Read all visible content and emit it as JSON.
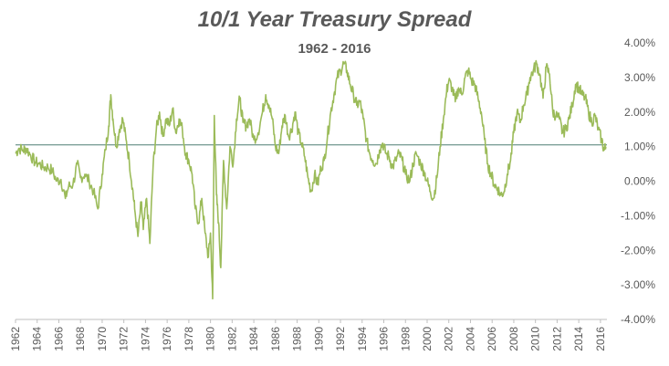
{
  "chart_data": {
    "type": "line",
    "title": "10/1 Year Treasury Spread",
    "subtitle": "1962 - 2016",
    "xlabel": "",
    "ylabel": "",
    "xlim": [
      1962,
      2016.6
    ],
    "ylim": [
      -4,
      4
    ],
    "y_ticks": [
      4,
      3,
      2,
      1,
      0,
      -1,
      -2,
      -3,
      -4
    ],
    "y_tick_labels": [
      "4.00%",
      "3.00%",
      "2.00%",
      "1.00%",
      "0.00%",
      "-1.00%",
      "-2.00%",
      "-3.00%",
      "-4.00%"
    ],
    "x_tick_labels": [
      "1962",
      "1964",
      "1966",
      "1968",
      "1970",
      "1972",
      "1974",
      "1976",
      "1978",
      "1980",
      "1982",
      "1984",
      "1986",
      "1988",
      "1990",
      "1992",
      "1994",
      "1996",
      "1998",
      "2000",
      "2002",
      "2004",
      "2006",
      "2008",
      "2010",
      "2012",
      "2014",
      "2016"
    ],
    "reference_line": {
      "y": 1.05,
      "color": "#4e7f74"
    },
    "grid": false,
    "legend": "none",
    "series": [
      {
        "color": "#9bbb59",
        "points": [
          [
            1962.0,
            0.8
          ],
          [
            1962.3,
            0.95
          ],
          [
            1962.7,
            0.9
          ],
          [
            1963.0,
            0.95
          ],
          [
            1963.4,
            0.75
          ],
          [
            1963.8,
            0.55
          ],
          [
            1964.2,
            0.5
          ],
          [
            1964.6,
            0.4
          ],
          [
            1965.0,
            0.4
          ],
          [
            1965.4,
            0.3
          ],
          [
            1965.8,
            0.0
          ],
          [
            1966.2,
            0.05
          ],
          [
            1966.6,
            -0.5
          ],
          [
            1966.9,
            -0.15
          ],
          [
            1967.3,
            -0.1
          ],
          [
            1967.7,
            0.5
          ],
          [
            1968.0,
            0.1
          ],
          [
            1968.4,
            0.2
          ],
          [
            1968.8,
            0.0
          ],
          [
            1969.2,
            -0.3
          ],
          [
            1969.6,
            -0.8
          ],
          [
            1970.0,
            0.2
          ],
          [
            1970.3,
            0.9
          ],
          [
            1970.6,
            1.6
          ],
          [
            1970.8,
            2.5
          ],
          [
            1971.0,
            1.8
          ],
          [
            1971.3,
            1.0
          ],
          [
            1971.6,
            1.5
          ],
          [
            1971.9,
            1.8
          ],
          [
            1972.2,
            1.2
          ],
          [
            1972.5,
            0.6
          ],
          [
            1972.8,
            -0.2
          ],
          [
            1973.0,
            -0.8
          ],
          [
            1973.3,
            -1.6
          ],
          [
            1973.6,
            -0.6
          ],
          [
            1973.8,
            -1.4
          ],
          [
            1974.1,
            -0.5
          ],
          [
            1974.4,
            -1.8
          ],
          [
            1974.7,
            0.4
          ],
          [
            1975.0,
            1.5
          ],
          [
            1975.3,
            2.0
          ],
          [
            1975.6,
            1.3
          ],
          [
            1975.9,
            1.8
          ],
          [
            1976.2,
            1.6
          ],
          [
            1976.5,
            2.1
          ],
          [
            1976.8,
            1.4
          ],
          [
            1977.1,
            1.8
          ],
          [
            1977.4,
            1.5
          ],
          [
            1977.7,
            0.8
          ],
          [
            1978.0,
            0.6
          ],
          [
            1978.3,
            0.2
          ],
          [
            1978.6,
            -0.8
          ],
          [
            1978.9,
            -1.2
          ],
          [
            1979.2,
            -0.5
          ],
          [
            1979.5,
            -1.5
          ],
          [
            1979.8,
            -2.2
          ],
          [
            1980.0,
            -1.5
          ],
          [
            1980.2,
            -3.4
          ],
          [
            1980.35,
            1.9
          ],
          [
            1980.55,
            -0.4
          ],
          [
            1980.75,
            -1.2
          ],
          [
            1980.95,
            -2.5
          ],
          [
            1981.2,
            0.6
          ],
          [
            1981.5,
            -0.8
          ],
          [
            1981.8,
            1.0
          ],
          [
            1982.1,
            0.5
          ],
          [
            1982.4,
            1.8
          ],
          [
            1982.7,
            2.4
          ],
          [
            1983.0,
            1.7
          ],
          [
            1983.3,
            1.6
          ],
          [
            1983.6,
            1.8
          ],
          [
            1984.0,
            1.2
          ],
          [
            1984.4,
            1.4
          ],
          [
            1984.8,
            2.0
          ],
          [
            1985.1,
            2.5
          ],
          [
            1985.4,
            2.2
          ],
          [
            1985.7,
            1.8
          ],
          [
            1986.0,
            1.0
          ],
          [
            1986.3,
            0.8
          ],
          [
            1986.6,
            1.6
          ],
          [
            1986.9,
            1.9
          ],
          [
            1987.2,
            1.3
          ],
          [
            1987.5,
            1.5
          ],
          [
            1987.8,
            2.0
          ],
          [
            1988.1,
            1.4
          ],
          [
            1988.4,
            1.1
          ],
          [
            1988.7,
            0.7
          ],
          [
            1989.0,
            0.1
          ],
          [
            1989.3,
            -0.3
          ],
          [
            1989.6,
            0.2
          ],
          [
            1989.9,
            -0.1
          ],
          [
            1990.2,
            0.4
          ],
          [
            1990.5,
            0.6
          ],
          [
            1990.8,
            1.3
          ],
          [
            1991.1,
            2.0
          ],
          [
            1991.4,
            2.5
          ],
          [
            1991.7,
            3.0
          ],
          [
            1992.0,
            3.2
          ],
          [
            1992.3,
            3.4
          ],
          [
            1992.6,
            3.2
          ],
          [
            1992.9,
            2.8
          ],
          [
            1993.2,
            2.5
          ],
          [
            1993.5,
            2.2
          ],
          [
            1993.8,
            2.3
          ],
          [
            1994.1,
            1.8
          ],
          [
            1994.4,
            1.2
          ],
          [
            1994.7,
            0.8
          ],
          [
            1995.0,
            0.6
          ],
          [
            1995.3,
            0.5
          ],
          [
            1995.6,
            0.9
          ],
          [
            1995.9,
            1.1
          ],
          [
            1996.2,
            0.8
          ],
          [
            1996.5,
            0.7
          ],
          [
            1996.8,
            0.4
          ],
          [
            1997.1,
            0.6
          ],
          [
            1997.4,
            0.8
          ],
          [
            1997.7,
            0.6
          ],
          [
            1998.0,
            0.2
          ],
          [
            1998.4,
            0.0
          ],
          [
            1998.7,
            0.5
          ],
          [
            1999.0,
            0.8
          ],
          [
            1999.4,
            0.5
          ],
          [
            1999.7,
            0.3
          ],
          [
            2000.0,
            0.0
          ],
          [
            2000.3,
            -0.3
          ],
          [
            2000.6,
            -0.5
          ],
          [
            2000.9,
            0.1
          ],
          [
            2001.2,
            1.0
          ],
          [
            2001.5,
            1.8
          ],
          [
            2001.8,
            2.6
          ],
          [
            2002.0,
            2.9
          ],
          [
            2002.3,
            2.7
          ],
          [
            2002.6,
            2.3
          ],
          [
            2002.9,
            2.7
          ],
          [
            2003.2,
            2.5
          ],
          [
            2003.5,
            3.0
          ],
          [
            2003.8,
            3.2
          ],
          [
            2004.1,
            2.9
          ],
          [
            2004.4,
            2.8
          ],
          [
            2004.7,
            2.4
          ],
          [
            2005.0,
            2.0
          ],
          [
            2005.3,
            1.2
          ],
          [
            2005.6,
            0.5
          ],
          [
            2005.9,
            0.2
          ],
          [
            2006.2,
            -0.1
          ],
          [
            2006.5,
            -0.2
          ],
          [
            2006.8,
            -0.4
          ],
          [
            2007.1,
            -0.3
          ],
          [
            2007.4,
            0.2
          ],
          [
            2007.7,
            0.6
          ],
          [
            2008.0,
            1.4
          ],
          [
            2008.3,
            2.0
          ],
          [
            2008.6,
            1.7
          ],
          [
            2008.9,
            2.2
          ],
          [
            2009.2,
            2.5
          ],
          [
            2009.5,
            3.0
          ],
          [
            2009.8,
            3.2
          ],
          [
            2010.1,
            3.4
          ],
          [
            2010.4,
            3.1
          ],
          [
            2010.7,
            2.4
          ],
          [
            2011.0,
            3.3
          ],
          [
            2011.3,
            3.1
          ],
          [
            2011.6,
            2.0
          ],
          [
            2011.9,
            1.9
          ],
          [
            2012.2,
            1.8
          ],
          [
            2012.5,
            1.4
          ],
          [
            2012.8,
            1.5
          ],
          [
            2013.1,
            1.8
          ],
          [
            2013.4,
            2.2
          ],
          [
            2013.7,
            2.8
          ],
          [
            2014.0,
            2.7
          ],
          [
            2014.3,
            2.5
          ],
          [
            2014.6,
            2.4
          ],
          [
            2014.9,
            2.0
          ],
          [
            2015.2,
            1.7
          ],
          [
            2015.5,
            1.9
          ],
          [
            2015.8,
            1.5
          ],
          [
            2016.1,
            1.2
          ],
          [
            2016.35,
            0.9
          ],
          [
            2016.5,
            1.0
          ]
        ]
      }
    ]
  }
}
